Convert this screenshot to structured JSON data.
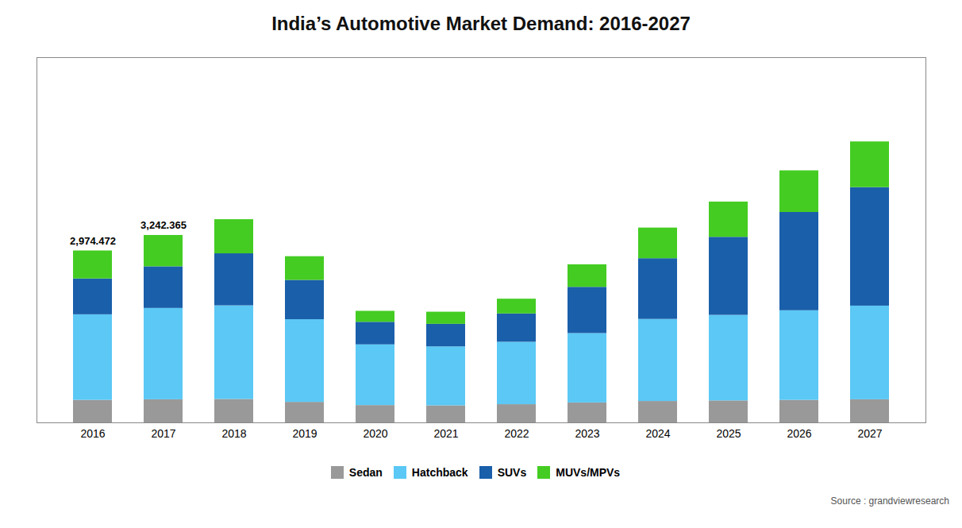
{
  "chart_data": {
    "type": "bar",
    "stacked": true,
    "title": "India’s Automotive Market Demand: 2016-2027",
    "caption": "Source : grandviewresearch",
    "categories": [
      "2016",
      "2017",
      "2018",
      "2019",
      "2020",
      "2021",
      "2022",
      "2023",
      "2024",
      "2025",
      "2026",
      "2027"
    ],
    "series": [
      {
        "name": "Sedan",
        "color": "#999999",
        "values": [
          390,
          400,
          405,
          355,
          300,
          295,
          315,
          345,
          370,
          380,
          390,
          400
        ]
      },
      {
        "name": "Hatchback",
        "color": "#5BC8F5",
        "values": [
          1480,
          1580,
          1620,
          1430,
          1050,
          1020,
          1080,
          1200,
          1420,
          1480,
          1550,
          1620
        ]
      },
      {
        "name": "SUVs",
        "color": "#1a5faa",
        "values": [
          620,
          720,
          900,
          680,
          390,
          390,
          490,
          800,
          1050,
          1350,
          1700,
          2050
        ]
      },
      {
        "name": "MUVs/MPVs",
        "color": "#44cc22",
        "values": [
          484,
          542,
          590,
          410,
          190,
          210,
          255,
          390,
          530,
          610,
          720,
          790
        ]
      }
    ],
    "annotations": [
      {
        "x": "2016",
        "text": "2,974.472"
      },
      {
        "x": "2017",
        "text": "3,242.365"
      }
    ],
    "ylim": [
      0,
      6318
    ],
    "yticks": [],
    "tick_labels": "x",
    "grid": false,
    "legend": "bottom"
  }
}
